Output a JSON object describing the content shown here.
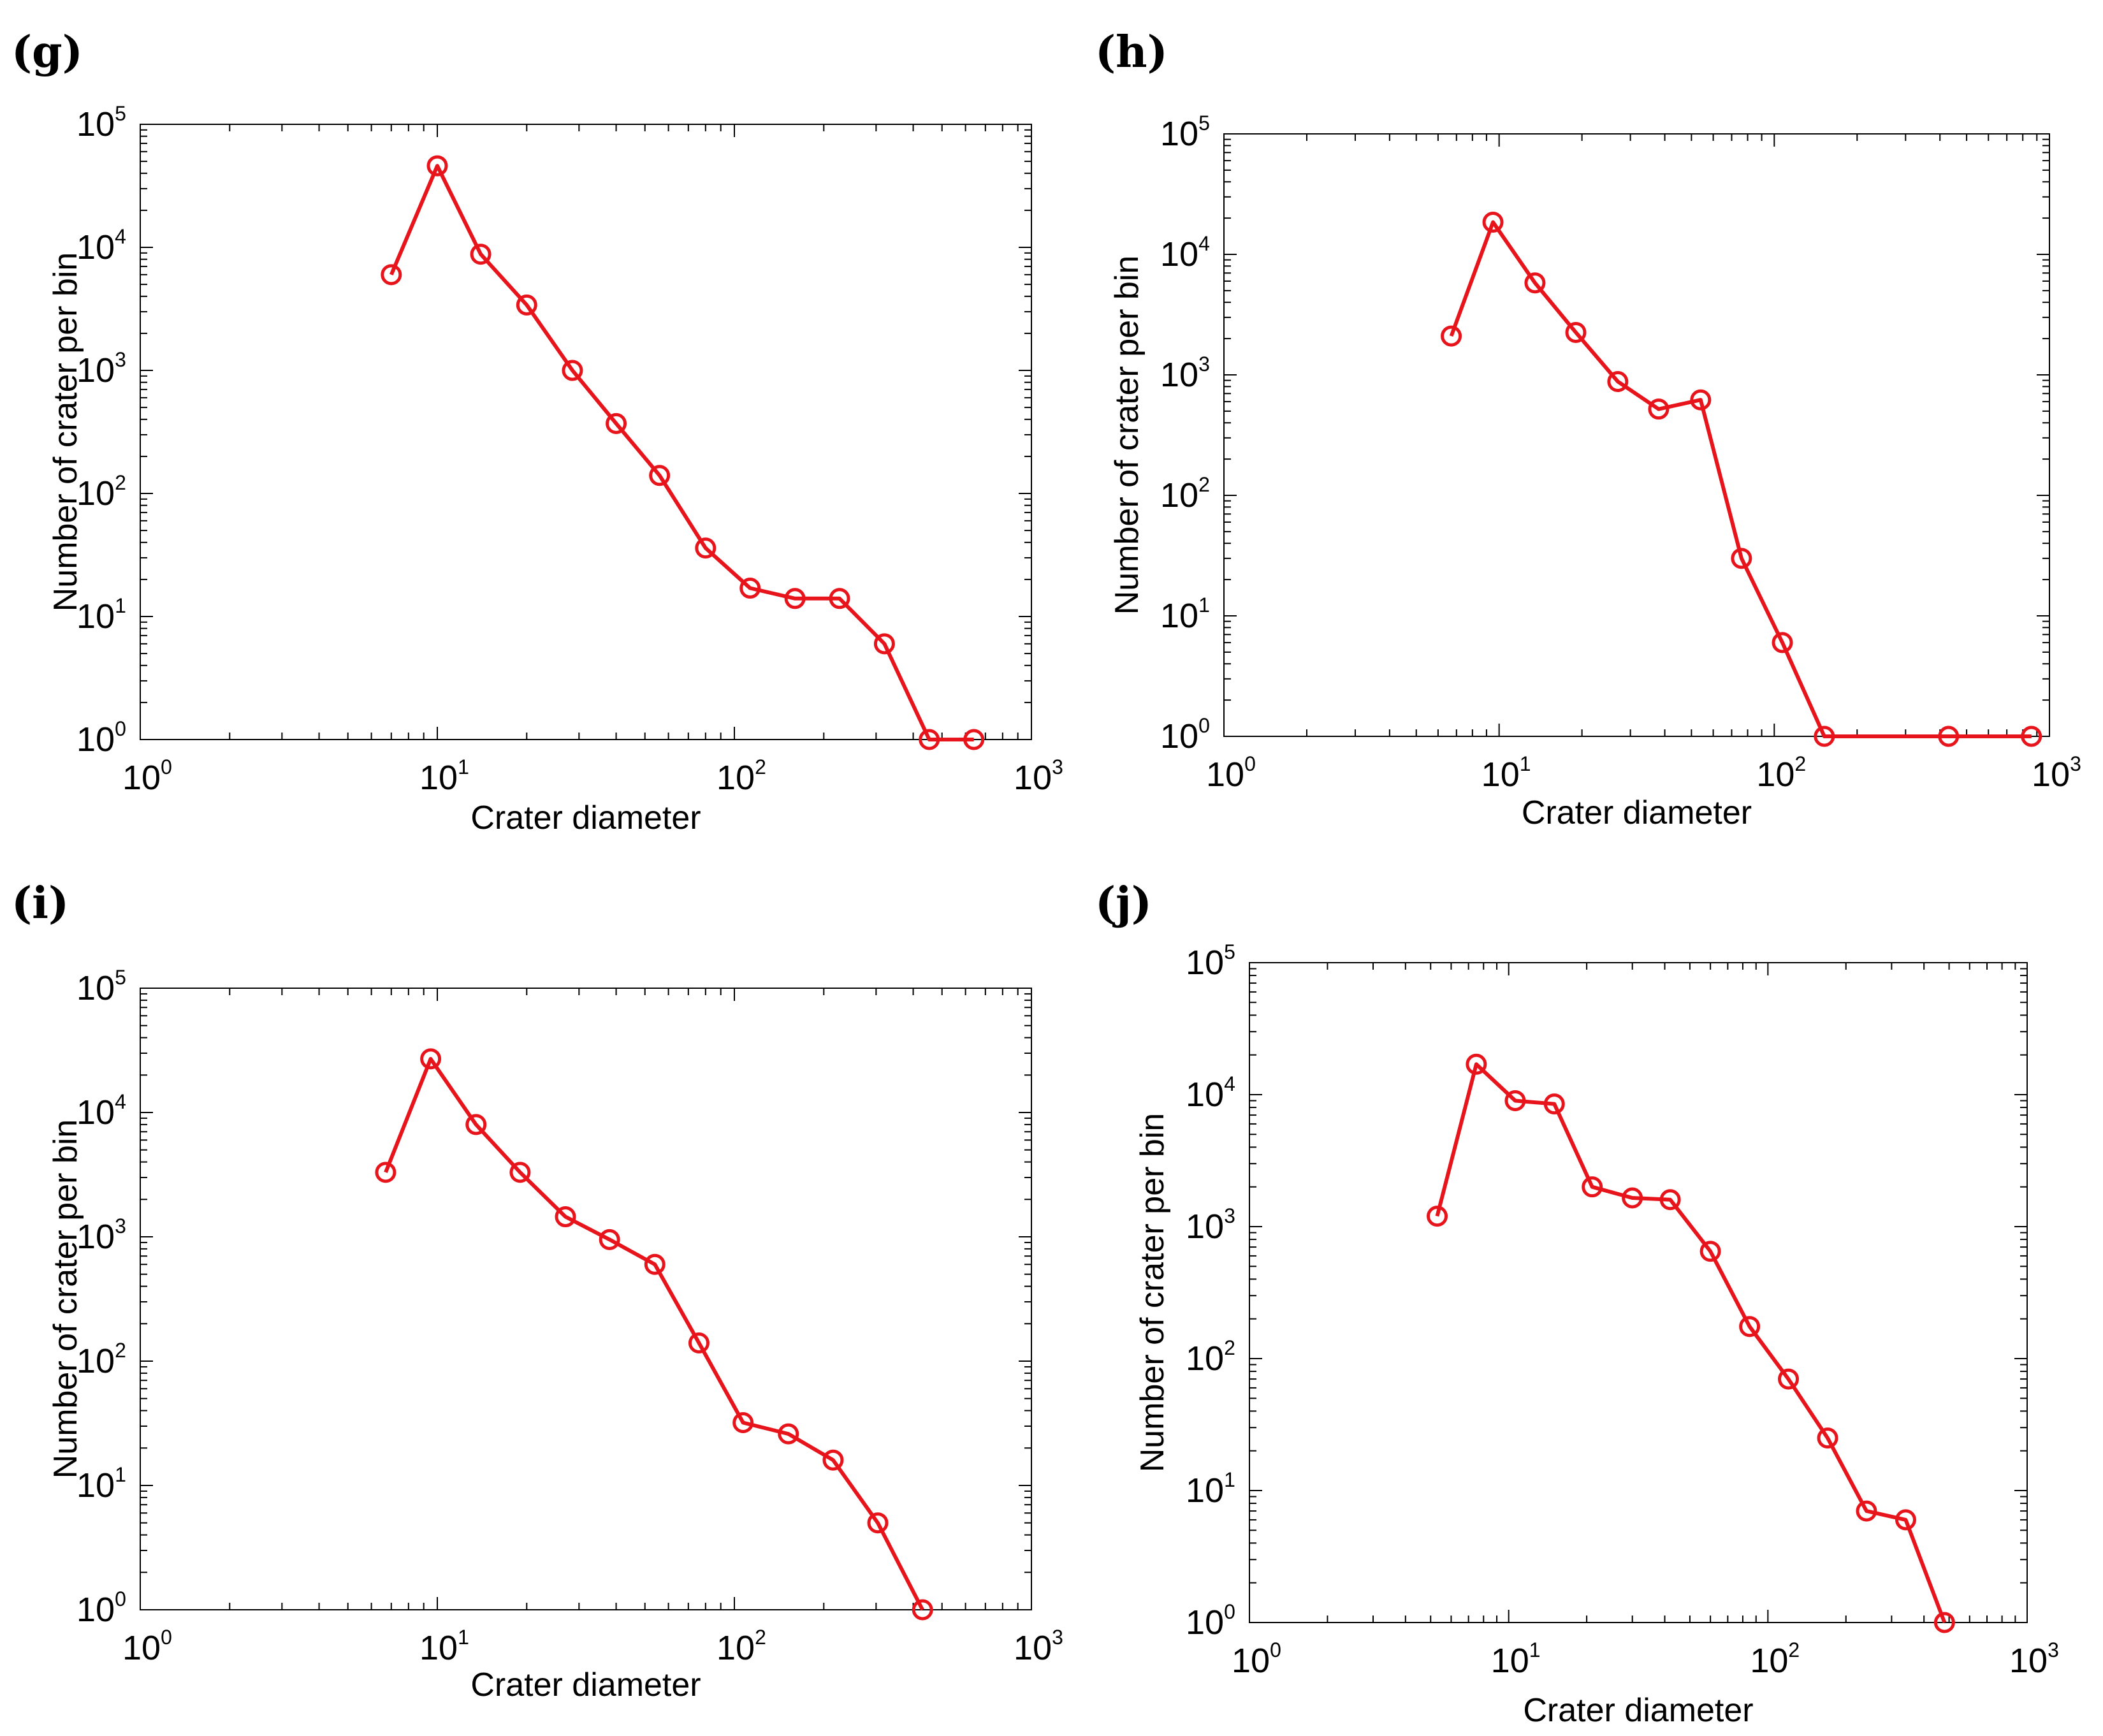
{
  "figure": {
    "panels": [
      "(g)",
      "(h)",
      "(i)",
      "(j)"
    ]
  },
  "colors": {
    "series": "#e8141b",
    "axis": "#000000"
  },
  "chart_data": [
    {
      "type": "line",
      "panel_label": "(g)",
      "xlabel": "Crater diameter",
      "ylabel": "Number of crater per bin",
      "xscale": "log",
      "yscale": "log",
      "xlim": [
        1,
        1000
      ],
      "ylim": [
        1,
        100000
      ],
      "xticks": [
        {
          "base": "10",
          "exp": "0"
        },
        {
          "base": "10",
          "exp": "1"
        },
        {
          "base": "10",
          "exp": "2"
        },
        {
          "base": "10",
          "exp": "3"
        }
      ],
      "yticks": [
        {
          "base": "10",
          "exp": "0"
        },
        {
          "base": "10",
          "exp": "1"
        },
        {
          "base": "10",
          "exp": "2"
        },
        {
          "base": "10",
          "exp": "3"
        },
        {
          "base": "10",
          "exp": "4"
        },
        {
          "base": "10",
          "exp": "5"
        }
      ],
      "x": [
        7,
        10,
        14,
        20,
        28.5,
        40,
        56,
        80,
        113,
        160,
        226,
        320,
        453,
        640
      ],
      "y": [
        6000,
        46000,
        8800,
        3400,
        1000,
        370,
        140,
        36,
        17,
        14,
        14,
        6,
        1,
        1
      ]
    },
    {
      "type": "line",
      "panel_label": "(h)",
      "xlabel": "Crater diameter",
      "ylabel": "Number of crater per bin",
      "xscale": "log",
      "yscale": "log",
      "xlim": [
        1,
        1000
      ],
      "ylim": [
        1,
        100000
      ],
      "xticks": [
        {
          "base": "10",
          "exp": "0"
        },
        {
          "base": "10",
          "exp": "1"
        },
        {
          "base": "10",
          "exp": "2"
        },
        {
          "base": "10",
          "exp": "3"
        }
      ],
      "yticks": [
        {
          "base": "10",
          "exp": "0"
        },
        {
          "base": "10",
          "exp": "1"
        },
        {
          "base": "10",
          "exp": "2"
        },
        {
          "base": "10",
          "exp": "3"
        },
        {
          "base": "10",
          "exp": "4"
        },
        {
          "base": "10",
          "exp": "5"
        }
      ],
      "x": [
        6.7,
        9.5,
        13.5,
        19,
        27,
        38,
        54,
        76,
        107,
        152,
        430,
        860
      ],
      "y": [
        2100,
        18500,
        5800,
        2250,
        880,
        520,
        620,
        30,
        6,
        1,
        1,
        1
      ]
    },
    {
      "type": "line",
      "panel_label": "(i)",
      "xlabel": "Crater diameter",
      "ylabel": "Number of crater per bin",
      "xscale": "log",
      "yscale": "log",
      "xlim": [
        1,
        1000
      ],
      "ylim": [
        1,
        100000
      ],
      "xticks": [
        {
          "base": "10",
          "exp": "0"
        },
        {
          "base": "10",
          "exp": "1"
        },
        {
          "base": "10",
          "exp": "2"
        },
        {
          "base": "10",
          "exp": "3"
        }
      ],
      "yticks": [
        {
          "base": "10",
          "exp": "0"
        },
        {
          "base": "10",
          "exp": "1"
        },
        {
          "base": "10",
          "exp": "2"
        },
        {
          "base": "10",
          "exp": "3"
        },
        {
          "base": "10",
          "exp": "4"
        },
        {
          "base": "10",
          "exp": "5"
        }
      ],
      "x": [
        6.7,
        9.5,
        13.5,
        19,
        27,
        38,
        54,
        76,
        107,
        152,
        215,
        304,
        430
      ],
      "y": [
        3300,
        27000,
        8000,
        3300,
        1450,
        950,
        600,
        140,
        32,
        26,
        16,
        5,
        1
      ]
    },
    {
      "type": "line",
      "panel_label": "(j)",
      "xlabel": "Crater diameter",
      "ylabel": "Number of crater per bin",
      "xscale": "log",
      "yscale": "log",
      "xlim": [
        1,
        1000
      ],
      "ylim": [
        1,
        100000
      ],
      "xticks": [
        {
          "base": "10",
          "exp": "0"
        },
        {
          "base": "10",
          "exp": "1"
        },
        {
          "base": "10",
          "exp": "2"
        },
        {
          "base": "10",
          "exp": "3"
        }
      ],
      "yticks": [
        {
          "base": "10",
          "exp": "0"
        },
        {
          "base": "10",
          "exp": "1"
        },
        {
          "base": "10",
          "exp": "2"
        },
        {
          "base": "10",
          "exp": "3"
        },
        {
          "base": "10",
          "exp": "4"
        },
        {
          "base": "10",
          "exp": "5"
        }
      ],
      "x": [
        5.3,
        7.5,
        10.6,
        15,
        21,
        30,
        42,
        60,
        85,
        120,
        170,
        240,
        340,
        480
      ],
      "y": [
        1200,
        17000,
        9000,
        8500,
        2000,
        1650,
        1600,
        650,
        175,
        70,
        25,
        7,
        6,
        1
      ]
    }
  ]
}
